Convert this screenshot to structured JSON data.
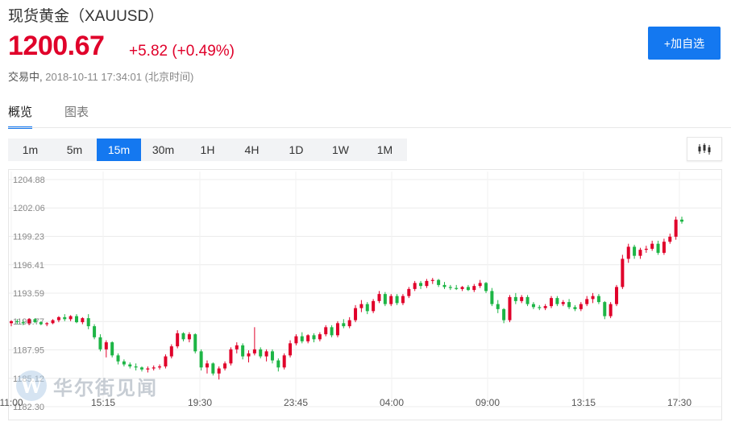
{
  "header": {
    "title": "现货黄金（XAUUSD）",
    "price": "1200.67",
    "change": "+5.82 (+0.49%)",
    "status_label": "交易中,",
    "timestamp": "2018-10-11 17:34:01 (北京时间)",
    "add_button": "+加自选"
  },
  "tabs": [
    {
      "label": "概览",
      "active": true
    },
    {
      "label": "图表",
      "active": false
    }
  ],
  "intervals": {
    "options": [
      "1m",
      "5m",
      "15m",
      "30m",
      "1H",
      "4H",
      "1D",
      "1W",
      "1M"
    ],
    "selected": "15m"
  },
  "chart_icon": "candlestick-icon",
  "watermark": {
    "logo_letter": "W",
    "text": "华尔街见闻"
  },
  "colors": {
    "up": "#e0002a",
    "down": "#1db545",
    "accent": "#1478f0"
  },
  "chart_data": {
    "type": "candlestick",
    "title": "",
    "ylim": [
      1182.3,
      1204.88
    ],
    "y_ticks": [
      "1204.88",
      "1202.06",
      "1199.23",
      "1196.41",
      "1193.59",
      "1190.77",
      "1187.95",
      "1185.12",
      "1182.30"
    ],
    "x_ticks": [
      "11:00",
      "15:15",
      "19:30",
      "23:45",
      "04:00",
      "09:00",
      "13:15",
      "17:30"
    ],
    "grid": true,
    "candles": [
      [
        1190.6,
        1190.9,
        1190.3,
        1190.8
      ],
      [
        1190.8,
        1191.0,
        1190.5,
        1190.7
      ],
      [
        1190.7,
        1190.9,
        1190.4,
        1190.6
      ],
      [
        1190.6,
        1191.1,
        1190.4,
        1191.0
      ],
      [
        1191.0,
        1191.1,
        1190.6,
        1190.7
      ],
      [
        1190.7,
        1190.8,
        1190.4,
        1190.5
      ],
      [
        1190.5,
        1190.7,
        1190.3,
        1190.6
      ],
      [
        1190.6,
        1191.0,
        1190.5,
        1190.9
      ],
      [
        1190.9,
        1191.3,
        1190.7,
        1191.2
      ],
      [
        1191.2,
        1191.5,
        1190.8,
        1191.0
      ],
      [
        1191.0,
        1191.4,
        1190.8,
        1191.3
      ],
      [
        1191.3,
        1191.5,
        1190.6,
        1190.7
      ],
      [
        1190.7,
        1191.2,
        1190.5,
        1191.1
      ],
      [
        1191.1,
        1191.5,
        1190.0,
        1190.3
      ],
      [
        1190.3,
        1190.5,
        1189.0,
        1189.2
      ],
      [
        1189.2,
        1189.5,
        1187.8,
        1188.0
      ],
      [
        1188.0,
        1188.9,
        1187.2,
        1188.7
      ],
      [
        1188.7,
        1188.8,
        1187.2,
        1187.4
      ],
      [
        1187.4,
        1187.6,
        1186.5,
        1186.8
      ],
      [
        1186.8,
        1187.0,
        1186.3,
        1186.5
      ],
      [
        1186.5,
        1186.7,
        1186.1,
        1186.3
      ],
      [
        1186.3,
        1186.6,
        1185.9,
        1186.2
      ],
      [
        1186.2,
        1186.3,
        1185.8,
        1186.0
      ],
      [
        1186.0,
        1186.3,
        1185.7,
        1186.1
      ],
      [
        1186.1,
        1186.4,
        1185.9,
        1186.2
      ],
      [
        1186.2,
        1186.5,
        1186.0,
        1186.3
      ],
      [
        1186.3,
        1187.5,
        1186.1,
        1187.3
      ],
      [
        1187.3,
        1188.5,
        1187.1,
        1188.3
      ],
      [
        1188.3,
        1189.9,
        1188.1,
        1189.6
      ],
      [
        1189.6,
        1189.7,
        1188.8,
        1189.0
      ],
      [
        1189.0,
        1189.7,
        1188.7,
        1189.5
      ],
      [
        1189.5,
        1189.6,
        1187.6,
        1187.8
      ],
      [
        1187.8,
        1188.0,
        1185.9,
        1186.2
      ],
      [
        1186.2,
        1186.9,
        1185.6,
        1186.6
      ],
      [
        1186.6,
        1186.7,
        1185.4,
        1185.6
      ],
      [
        1185.6,
        1186.3,
        1185.0,
        1186.1
      ],
      [
        1186.1,
        1186.8,
        1185.9,
        1186.6
      ],
      [
        1186.6,
        1188.2,
        1186.4,
        1188.0
      ],
      [
        1188.0,
        1188.7,
        1187.6,
        1188.4
      ],
      [
        1188.4,
        1188.6,
        1187.0,
        1187.3
      ],
      [
        1187.3,
        1187.9,
        1186.7,
        1187.6
      ],
      [
        1187.6,
        1190.2,
        1187.4,
        1188.0
      ],
      [
        1188.0,
        1188.2,
        1187.1,
        1187.3
      ],
      [
        1187.3,
        1188.0,
        1186.8,
        1187.8
      ],
      [
        1187.8,
        1188.0,
        1186.6,
        1186.9
      ],
      [
        1186.9,
        1187.1,
        1185.8,
        1186.2
      ],
      [
        1186.2,
        1187.6,
        1186.0,
        1187.4
      ],
      [
        1187.4,
        1188.9,
        1187.2,
        1188.6
      ],
      [
        1188.6,
        1189.5,
        1188.4,
        1189.3
      ],
      [
        1189.3,
        1189.7,
        1188.6,
        1188.8
      ],
      [
        1188.8,
        1189.5,
        1188.6,
        1189.4
      ],
      [
        1189.4,
        1189.6,
        1188.7,
        1189.0
      ],
      [
        1189.0,
        1189.7,
        1188.8,
        1189.5
      ],
      [
        1189.5,
        1190.4,
        1189.3,
        1190.2
      ],
      [
        1190.2,
        1190.4,
        1189.2,
        1189.4
      ],
      [
        1189.4,
        1190.8,
        1189.2,
        1190.6
      ],
      [
        1190.6,
        1191.0,
        1190.1,
        1190.3
      ],
      [
        1190.3,
        1191.2,
        1190.1,
        1190.9
      ],
      [
        1190.9,
        1192.4,
        1190.7,
        1192.1
      ],
      [
        1192.1,
        1192.9,
        1191.7,
        1192.5
      ],
      [
        1192.5,
        1192.7,
        1191.5,
        1191.8
      ],
      [
        1191.8,
        1193.0,
        1191.6,
        1192.8
      ],
      [
        1192.8,
        1193.8,
        1192.6,
        1193.5
      ],
      [
        1193.5,
        1193.7,
        1192.3,
        1192.5
      ],
      [
        1192.5,
        1193.5,
        1192.3,
        1193.3
      ],
      [
        1193.3,
        1193.5,
        1192.4,
        1192.6
      ],
      [
        1192.6,
        1193.5,
        1192.4,
        1193.3
      ],
      [
        1193.3,
        1194.2,
        1193.1,
        1194.0
      ],
      [
        1194.0,
        1194.8,
        1193.8,
        1194.6
      ],
      [
        1194.6,
        1194.8,
        1194.0,
        1194.3
      ],
      [
        1194.3,
        1195.0,
        1194.1,
        1194.8
      ],
      [
        1194.8,
        1195.1,
        1194.5,
        1194.9
      ],
      [
        1194.9,
        1195.0,
        1194.2,
        1194.4
      ],
      [
        1194.4,
        1194.7,
        1194.0,
        1194.2
      ],
      [
        1194.2,
        1194.4,
        1193.9,
        1194.1
      ],
      [
        1194.1,
        1194.4,
        1193.9,
        1194.0
      ],
      [
        1194.0,
        1194.3,
        1193.8,
        1194.2
      ],
      [
        1194.2,
        1194.4,
        1193.8,
        1193.9
      ],
      [
        1193.9,
        1194.5,
        1193.7,
        1194.3
      ],
      [
        1194.3,
        1194.9,
        1194.1,
        1194.6
      ],
      [
        1194.6,
        1194.7,
        1193.6,
        1193.8
      ],
      [
        1193.8,
        1194.1,
        1192.3,
        1192.5
      ],
      [
        1192.5,
        1192.9,
        1191.6,
        1192.0
      ],
      [
        1192.0,
        1192.1,
        1190.6,
        1190.9
      ],
      [
        1190.9,
        1193.4,
        1190.7,
        1193.2
      ],
      [
        1193.2,
        1193.6,
        1192.5,
        1192.8
      ],
      [
        1192.8,
        1193.4,
        1192.6,
        1193.2
      ],
      [
        1193.2,
        1193.4,
        1192.3,
        1192.5
      ],
      [
        1192.5,
        1192.7,
        1192.0,
        1192.2
      ],
      [
        1192.2,
        1192.4,
        1191.9,
        1192.1
      ],
      [
        1192.1,
        1192.5,
        1191.9,
        1192.3
      ],
      [
        1192.3,
        1193.3,
        1192.1,
        1193.1
      ],
      [
        1193.1,
        1193.3,
        1192.3,
        1192.5
      ],
      [
        1192.5,
        1192.9,
        1192.3,
        1192.7
      ],
      [
        1192.7,
        1193.0,
        1192.0,
        1192.2
      ],
      [
        1192.2,
        1192.4,
        1191.8,
        1192.0
      ],
      [
        1192.0,
        1192.7,
        1191.8,
        1192.5
      ],
      [
        1192.5,
        1193.3,
        1192.3,
        1193.0
      ],
      [
        1193.0,
        1193.6,
        1192.6,
        1193.3
      ],
      [
        1193.3,
        1193.5,
        1192.5,
        1192.7
      ],
      [
        1192.7,
        1192.8,
        1191.0,
        1191.3
      ],
      [
        1191.3,
        1192.7,
        1191.1,
        1192.5
      ],
      [
        1192.5,
        1194.4,
        1192.3,
        1194.2
      ],
      [
        1194.2,
        1197.4,
        1194.0,
        1197.0
      ],
      [
        1197.0,
        1198.5,
        1196.6,
        1198.2
      ],
      [
        1198.2,
        1198.4,
        1197.0,
        1197.3
      ],
      [
        1197.3,
        1198.1,
        1197.0,
        1197.9
      ],
      [
        1197.9,
        1198.3,
        1197.6,
        1198.0
      ],
      [
        1198.0,
        1198.8,
        1197.8,
        1198.5
      ],
      [
        1198.5,
        1198.8,
        1197.4,
        1197.6
      ],
      [
        1197.6,
        1199.0,
        1197.4,
        1198.7
      ],
      [
        1198.7,
        1199.5,
        1198.5,
        1199.2
      ],
      [
        1199.2,
        1201.2,
        1198.9,
        1200.9
      ],
      [
        1200.9,
        1201.2,
        1200.5,
        1200.7
      ]
    ]
  }
}
